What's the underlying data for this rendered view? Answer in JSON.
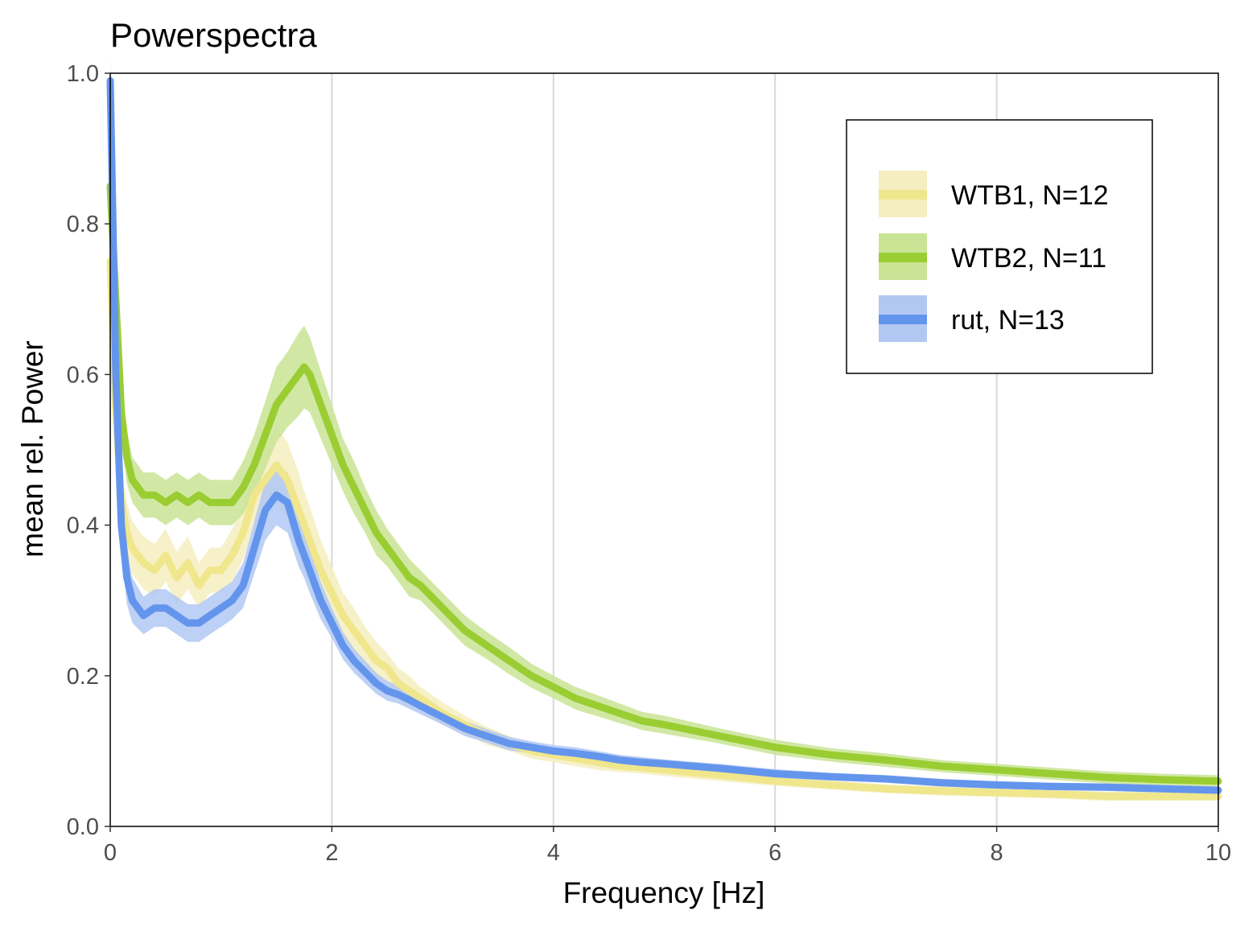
{
  "chart_data": {
    "type": "line",
    "title": "Powerspectra",
    "xlabel": "Frequency [Hz]",
    "ylabel": "mean rel. Power",
    "xlim": [
      0,
      10
    ],
    "ylim": [
      0,
      1
    ],
    "x_ticks": [
      "0",
      "2",
      "4",
      "6",
      "8",
      "10"
    ],
    "y_ticks": [
      "0.0",
      "0.2",
      "0.4",
      "0.6",
      "0.8",
      "1.0"
    ],
    "grid": "vertical major gridlines",
    "legend_position": "top-right",
    "x": [
      0.0,
      0.05,
      0.1,
      0.15,
      0.2,
      0.3,
      0.4,
      0.5,
      0.6,
      0.7,
      0.8,
      0.9,
      1.0,
      1.1,
      1.2,
      1.3,
      1.4,
      1.5,
      1.6,
      1.7,
      1.75,
      1.8,
      1.9,
      2.0,
      2.1,
      2.2,
      2.3,
      2.4,
      2.5,
      2.6,
      2.7,
      2.8,
      3.0,
      3.2,
      3.4,
      3.6,
      3.8,
      4.0,
      4.2,
      4.4,
      4.6,
      4.8,
      5.0,
      5.5,
      6.0,
      6.5,
      7.0,
      7.5,
      8.0,
      8.5,
      9.0,
      9.5,
      10.0
    ],
    "series": [
      {
        "name": "WTB1, N=12",
        "color": "#f0e68c",
        "band_color": "#f5eec0",
        "values": [
          0.75,
          0.55,
          0.43,
          0.39,
          0.37,
          0.35,
          0.34,
          0.36,
          0.33,
          0.35,
          0.32,
          0.34,
          0.34,
          0.36,
          0.39,
          0.44,
          0.46,
          0.48,
          0.46,
          0.42,
          0.4,
          0.38,
          0.34,
          0.31,
          0.28,
          0.26,
          0.24,
          0.22,
          0.21,
          0.19,
          0.18,
          0.17,
          0.15,
          0.135,
          0.12,
          0.11,
          0.1,
          0.095,
          0.09,
          0.085,
          0.08,
          0.078,
          0.075,
          0.068,
          0.06,
          0.055,
          0.05,
          0.047,
          0.045,
          0.043,
          0.04,
          0.04,
          0.04
        ],
        "band_halfwidth": [
          0.04,
          0.05,
          0.04,
          0.04,
          0.035,
          0.035,
          0.035,
          0.035,
          0.035,
          0.035,
          0.03,
          0.03,
          0.03,
          0.035,
          0.035,
          0.04,
          0.045,
          0.05,
          0.05,
          0.05,
          0.045,
          0.045,
          0.04,
          0.035,
          0.03,
          0.03,
          0.025,
          0.025,
          0.02,
          0.02,
          0.02,
          0.015,
          0.015,
          0.012,
          0.012,
          0.01,
          0.01,
          0.01,
          0.01,
          0.01,
          0.008,
          0.008,
          0.008,
          0.008,
          0.006,
          0.006,
          0.006,
          0.006,
          0.006,
          0.006,
          0.006,
          0.006,
          0.006
        ]
      },
      {
        "name": "WTB2, N=11",
        "color": "#9acd32",
        "band_color": "#c9e495",
        "values": [
          0.85,
          0.7,
          0.55,
          0.49,
          0.46,
          0.44,
          0.44,
          0.43,
          0.44,
          0.43,
          0.44,
          0.43,
          0.43,
          0.43,
          0.45,
          0.48,
          0.52,
          0.56,
          0.58,
          0.6,
          0.61,
          0.6,
          0.56,
          0.52,
          0.48,
          0.45,
          0.42,
          0.39,
          0.37,
          0.35,
          0.33,
          0.32,
          0.29,
          0.26,
          0.24,
          0.22,
          0.2,
          0.185,
          0.17,
          0.16,
          0.15,
          0.14,
          0.135,
          0.12,
          0.105,
          0.095,
          0.088,
          0.08,
          0.075,
          0.07,
          0.065,
          0.062,
          0.06
        ],
        "band_halfwidth": [
          0.04,
          0.05,
          0.04,
          0.035,
          0.03,
          0.03,
          0.03,
          0.03,
          0.03,
          0.03,
          0.03,
          0.03,
          0.03,
          0.03,
          0.035,
          0.04,
          0.045,
          0.05,
          0.05,
          0.055,
          0.055,
          0.05,
          0.045,
          0.04,
          0.035,
          0.035,
          0.03,
          0.03,
          0.025,
          0.025,
          0.025,
          0.02,
          0.02,
          0.02,
          0.018,
          0.018,
          0.016,
          0.015,
          0.015,
          0.014,
          0.013,
          0.012,
          0.012,
          0.01,
          0.01,
          0.009,
          0.009,
          0.008,
          0.008,
          0.008,
          0.008,
          0.008,
          0.008
        ]
      },
      {
        "name": "rut, N=13",
        "color": "#6495ed",
        "band_color": "#b2c8f3",
        "values": [
          0.99,
          0.6,
          0.4,
          0.33,
          0.3,
          0.28,
          0.29,
          0.29,
          0.28,
          0.27,
          0.27,
          0.28,
          0.29,
          0.3,
          0.32,
          0.37,
          0.42,
          0.44,
          0.43,
          0.38,
          0.36,
          0.34,
          0.3,
          0.27,
          0.24,
          0.22,
          0.205,
          0.19,
          0.18,
          0.175,
          0.168,
          0.16,
          0.145,
          0.13,
          0.12,
          0.11,
          0.105,
          0.1,
          0.097,
          0.093,
          0.088,
          0.085,
          0.083,
          0.077,
          0.07,
          0.066,
          0.063,
          0.058,
          0.055,
          0.053,
          0.052,
          0.05,
          0.048
        ],
        "band_halfwidth": [
          0.03,
          0.05,
          0.04,
          0.035,
          0.03,
          0.025,
          0.025,
          0.025,
          0.025,
          0.025,
          0.025,
          0.025,
          0.025,
          0.025,
          0.03,
          0.035,
          0.04,
          0.04,
          0.04,
          0.035,
          0.03,
          0.03,
          0.025,
          0.02,
          0.018,
          0.016,
          0.015,
          0.014,
          0.013,
          0.012,
          0.012,
          0.011,
          0.01,
          0.01,
          0.009,
          0.009,
          0.008,
          0.008,
          0.008,
          0.007,
          0.007,
          0.007,
          0.006,
          0.006,
          0.006,
          0.005,
          0.005,
          0.005,
          0.005,
          0.005,
          0.005,
          0.005,
          0.005
        ]
      }
    ]
  }
}
